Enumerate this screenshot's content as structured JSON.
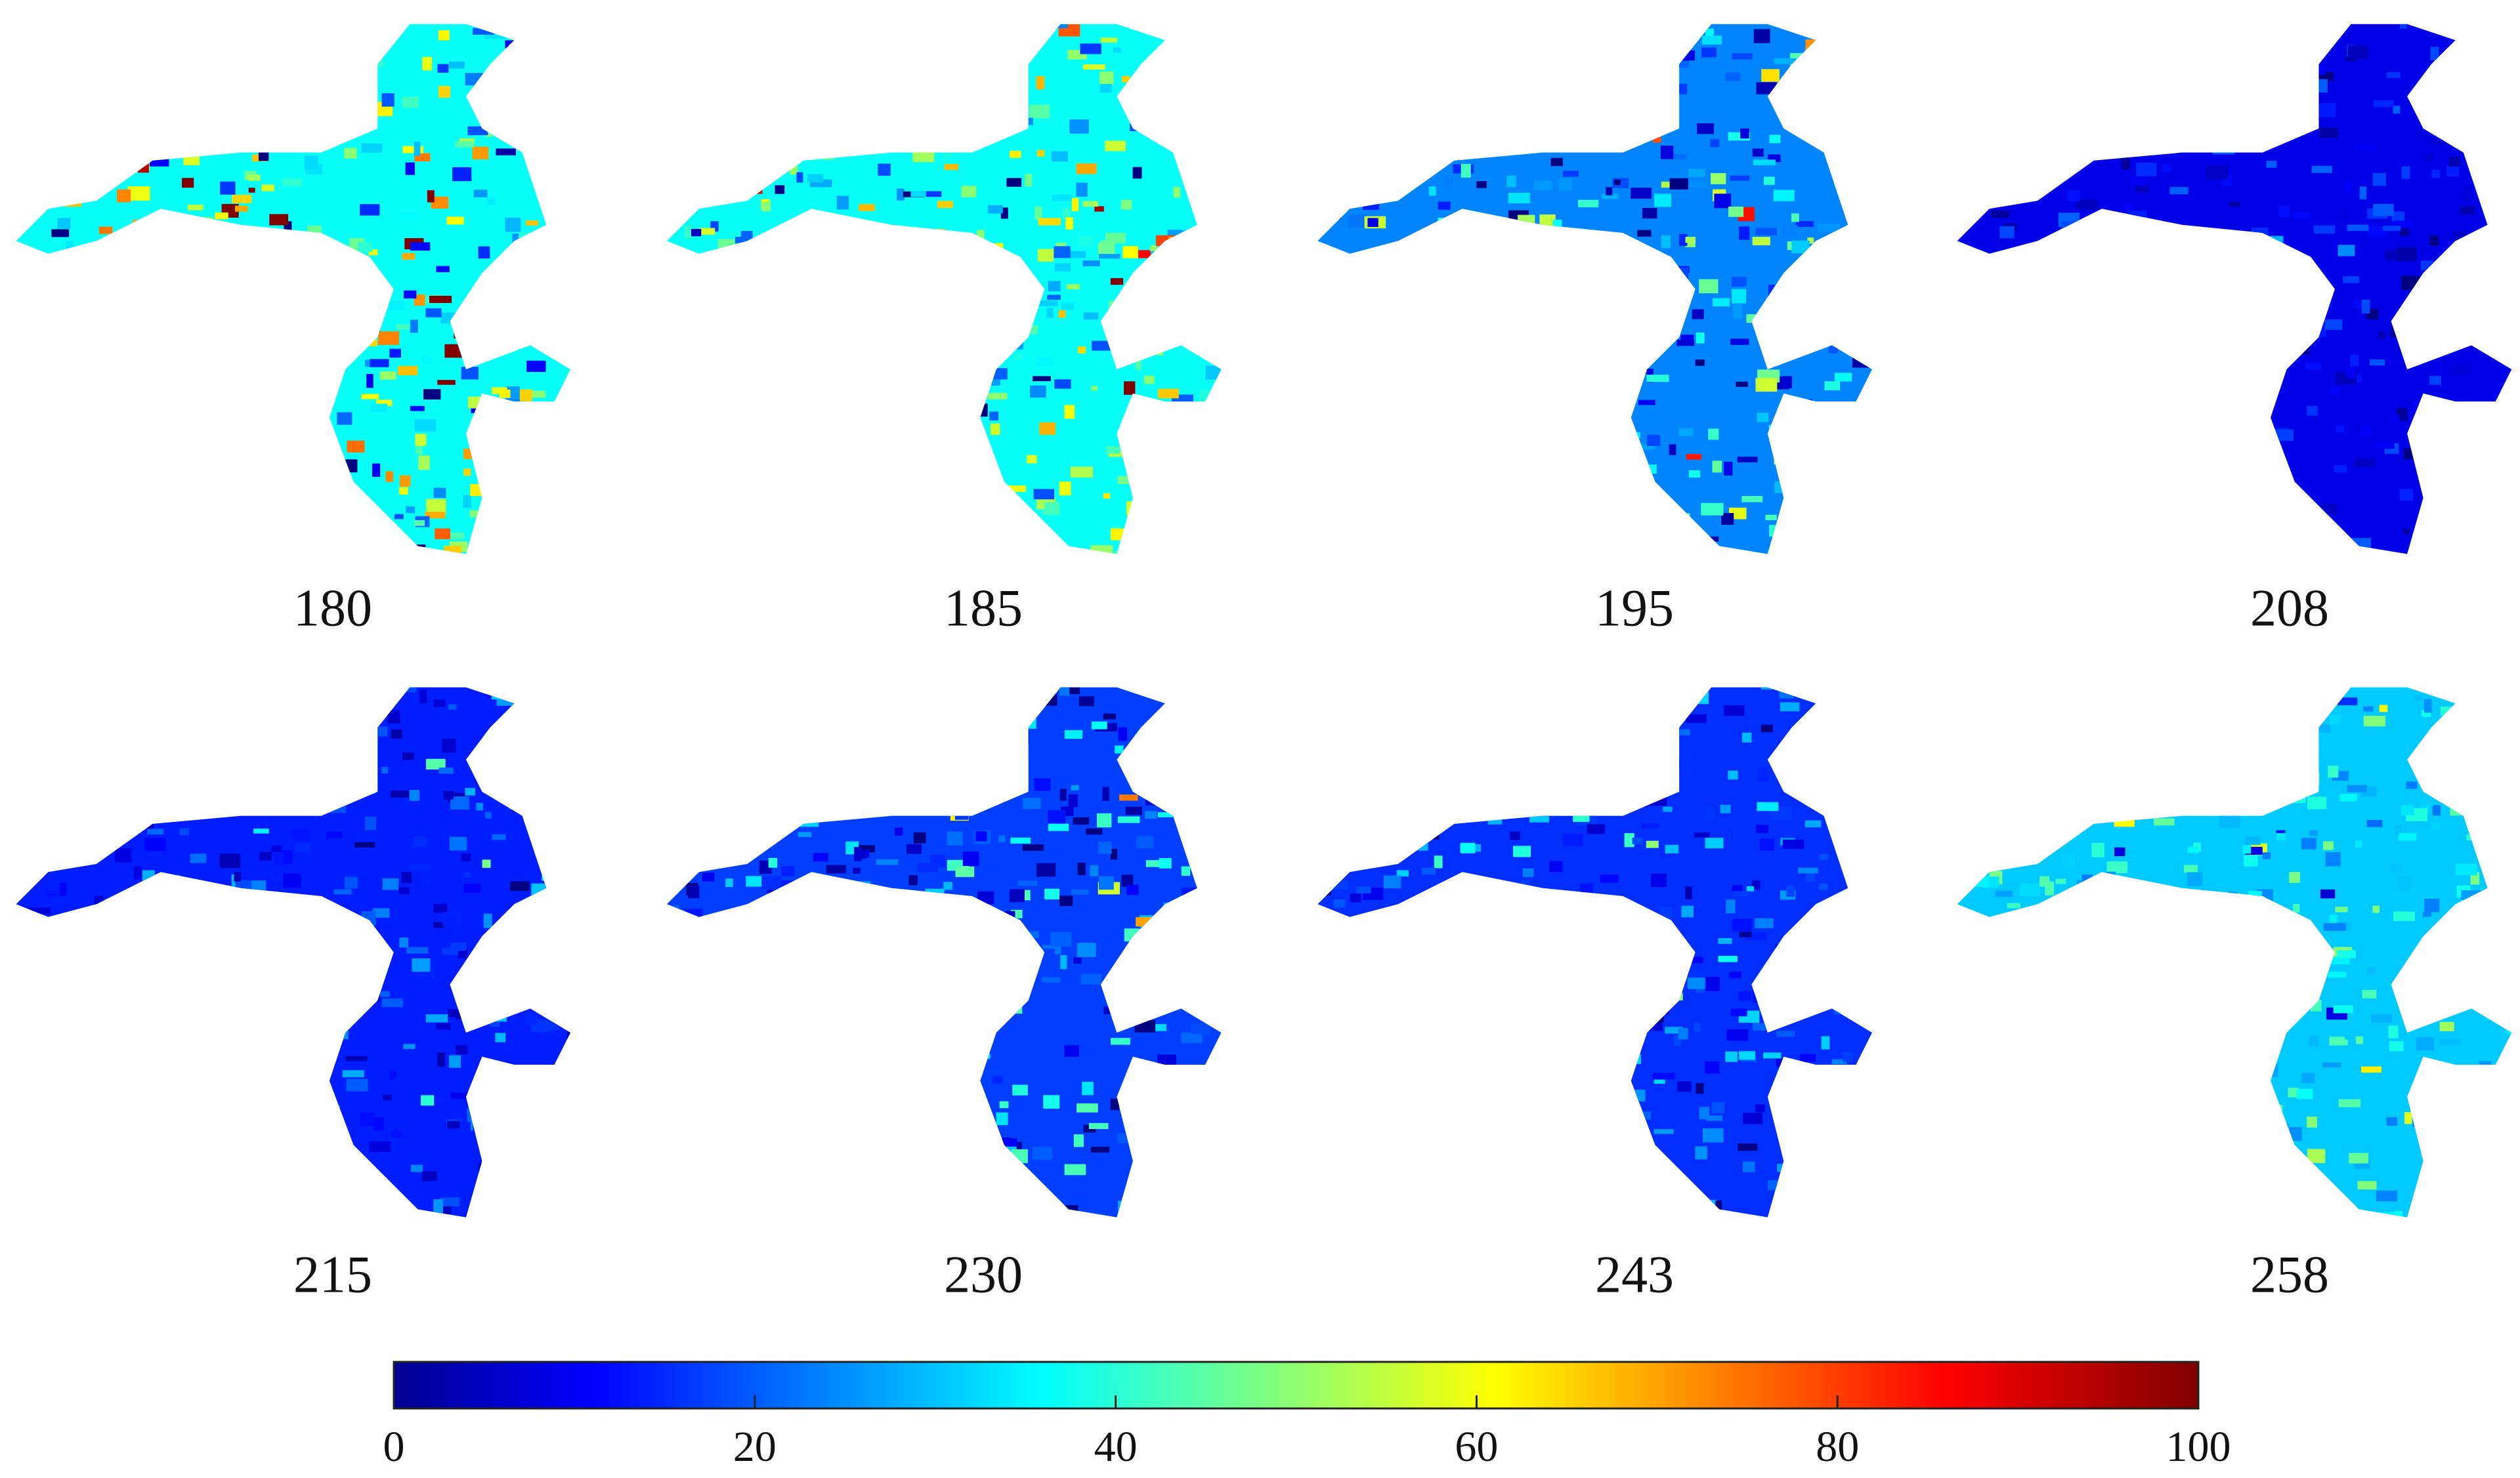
{
  "panels": [
    {
      "label": "180"
    },
    {
      "label": "185"
    },
    {
      "label": "195"
    },
    {
      "label": "208"
    },
    {
      "label": "215"
    },
    {
      "label": "230"
    },
    {
      "label": "243"
    },
    {
      "label": "258"
    }
  ],
  "colorbar": {
    "range": [
      0,
      100
    ],
    "ticks": [
      0,
      20,
      40,
      60,
      80,
      100
    ]
  }
}
